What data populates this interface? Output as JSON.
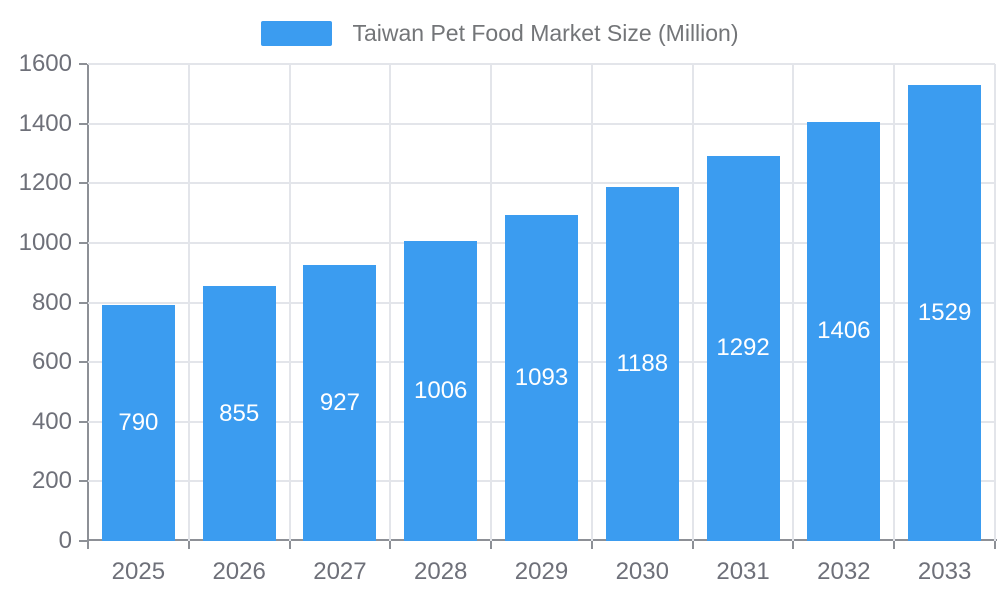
{
  "legend": {
    "label": "Taiwan Pet Food Market Size (Million)"
  },
  "chart_data": {
    "type": "bar",
    "title": "Taiwan Pet Food Market Size (Million)",
    "categories": [
      "2025",
      "2026",
      "2027",
      "2028",
      "2029",
      "2030",
      "2031",
      "2032",
      "2033"
    ],
    "values": [
      790,
      855,
      927,
      1006,
      1093,
      1188,
      1292,
      1406,
      1529
    ],
    "xlabel": "",
    "ylabel": "",
    "ylim": [
      0,
      1600
    ],
    "yticks": [
      0,
      200,
      400,
      600,
      800,
      1000,
      1200,
      1400,
      1600
    ],
    "grid": "horizontal and vertical light gridlines",
    "legend_position": "top-center",
    "value_labels": "white, centered inside bars",
    "colors": {
      "bar": "#3B9CF0",
      "grid": "#E3E5EA",
      "axis": "#8D9096",
      "axis_text": "#6E7079",
      "legend_text": "#737578",
      "value_text": "#FFFFFF",
      "background": "#FFFFFF"
    }
  }
}
